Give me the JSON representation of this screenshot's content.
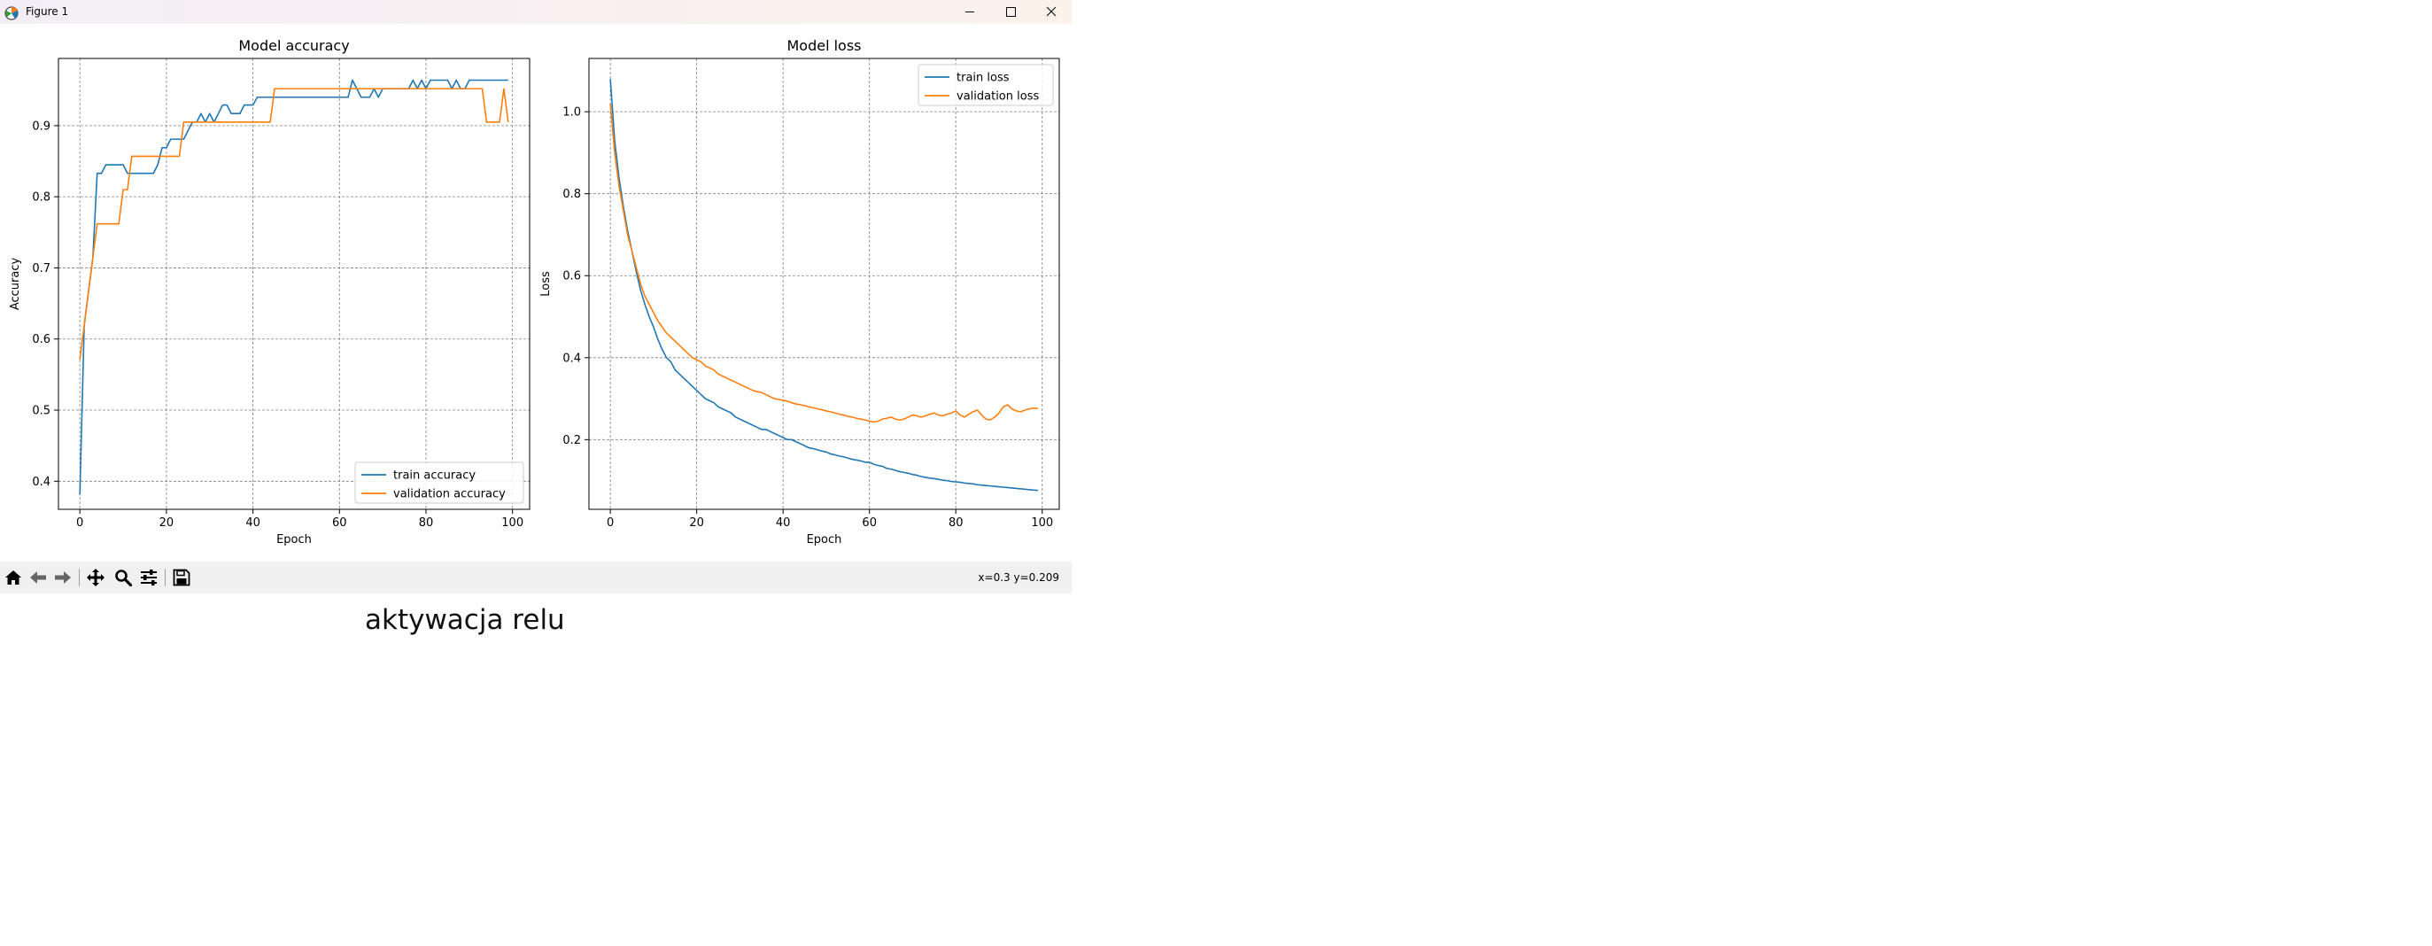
{
  "window": {
    "title": "Figure 1"
  },
  "toolbar": {
    "coordinates": "x=0.3 y=0.209",
    "tools": [
      "home-icon",
      "back-arrow-icon",
      "forward-arrow-icon",
      "pan-icon",
      "zoom-icon",
      "configure-icon",
      "save-icon"
    ]
  },
  "caption": "aktywacja relu",
  "colors": {
    "train": "#1f77b4",
    "validation": "#ff7f0e",
    "grid": "#808080"
  },
  "chart_data": [
    {
      "type": "line",
      "title": "Model accuracy",
      "xlabel": "Epoch",
      "ylabel": "Accuracy",
      "xlim": [
        -4.95,
        103.95
      ],
      "ylim": [
        0.3605,
        0.9945
      ],
      "xticks": [
        0,
        20,
        40,
        60,
        80,
        100
      ],
      "yticks": [
        0.4,
        0.5,
        0.6,
        0.7,
        0.8,
        0.9
      ],
      "grid": true,
      "grid_style": "dashed",
      "legend_position": "lower-right",
      "series": [
        {
          "name": "train accuracy",
          "color": "#1f77b4",
          "x": [
            0,
            1,
            2,
            3,
            4,
            5,
            6,
            7,
            8,
            9,
            10,
            11,
            12,
            13,
            14,
            15,
            16,
            17,
            18,
            19,
            20,
            21,
            22,
            23,
            24,
            25,
            26,
            27,
            28,
            29,
            30,
            31,
            32,
            33,
            34,
            35,
            36,
            37,
            38,
            39,
            40,
            41,
            42,
            43,
            44,
            45,
            46,
            47,
            48,
            49,
            50,
            51,
            52,
            53,
            54,
            55,
            56,
            57,
            58,
            59,
            60,
            61,
            62,
            63,
            64,
            65,
            66,
            67,
            68,
            69,
            70,
            71,
            72,
            73,
            74,
            75,
            76,
            77,
            78,
            79,
            80,
            81,
            82,
            83,
            84,
            85,
            86,
            87,
            88,
            89,
            90,
            91,
            92,
            93,
            94,
            95,
            96,
            97,
            98,
            99
          ],
          "values": [
            0.381,
            0.619,
            0.667,
            0.714,
            0.833,
            0.833,
            0.845,
            0.845,
            0.845,
            0.845,
            0.845,
            0.833,
            0.833,
            0.833,
            0.833,
            0.833,
            0.833,
            0.833,
            0.845,
            0.869,
            0.869,
            0.881,
            0.881,
            0.881,
            0.881,
            0.893,
            0.905,
            0.905,
            0.917,
            0.905,
            0.917,
            0.905,
            0.917,
            0.929,
            0.929,
            0.917,
            0.917,
            0.917,
            0.929,
            0.929,
            0.929,
            0.94,
            0.94,
            0.94,
            0.94,
            0.94,
            0.94,
            0.94,
            0.94,
            0.94,
            0.94,
            0.94,
            0.94,
            0.94,
            0.94,
            0.94,
            0.94,
            0.94,
            0.94,
            0.94,
            0.94,
            0.94,
            0.94,
            0.964,
            0.952,
            0.94,
            0.94,
            0.94,
            0.952,
            0.94,
            0.952,
            0.952,
            0.952,
            0.952,
            0.952,
            0.952,
            0.952,
            0.964,
            0.952,
            0.964,
            0.952,
            0.964,
            0.964,
            0.964,
            0.964,
            0.964,
            0.952,
            0.964,
            0.952,
            0.952,
            0.964,
            0.964,
            0.964,
            0.964,
            0.964,
            0.964,
            0.964,
            0.964,
            0.964,
            0.964
          ]
        },
        {
          "name": "validation accuracy",
          "color": "#ff7f0e",
          "x": [
            0,
            1,
            2,
            3,
            4,
            5,
            6,
            7,
            8,
            9,
            10,
            11,
            12,
            13,
            14,
            15,
            16,
            17,
            18,
            19,
            20,
            21,
            22,
            23,
            24,
            25,
            26,
            27,
            28,
            29,
            30,
            31,
            32,
            33,
            34,
            35,
            36,
            37,
            38,
            39,
            40,
            41,
            42,
            43,
            44,
            45,
            46,
            47,
            48,
            49,
            50,
            51,
            52,
            53,
            54,
            55,
            56,
            57,
            58,
            59,
            60,
            61,
            62,
            63,
            64,
            65,
            66,
            67,
            68,
            69,
            70,
            71,
            72,
            73,
            74,
            75,
            76,
            77,
            78,
            79,
            80,
            81,
            82,
            83,
            84,
            85,
            86,
            87,
            88,
            89,
            90,
            91,
            92,
            93,
            94,
            95,
            96,
            97,
            98,
            99
          ],
          "values": [
            0.571,
            0.619,
            0.667,
            0.714,
            0.762,
            0.762,
            0.762,
            0.762,
            0.762,
            0.762,
            0.81,
            0.81,
            0.857,
            0.857,
            0.857,
            0.857,
            0.857,
            0.857,
            0.857,
            0.857,
            0.857,
            0.857,
            0.857,
            0.857,
            0.905,
            0.905,
            0.905,
            0.905,
            0.905,
            0.905,
            0.905,
            0.905,
            0.905,
            0.905,
            0.905,
            0.905,
            0.905,
            0.905,
            0.905,
            0.905,
            0.905,
            0.905,
            0.905,
            0.905,
            0.905,
            0.952,
            0.952,
            0.952,
            0.952,
            0.952,
            0.952,
            0.952,
            0.952,
            0.952,
            0.952,
            0.952,
            0.952,
            0.952,
            0.952,
            0.952,
            0.952,
            0.952,
            0.952,
            0.952,
            0.952,
            0.952,
            0.952,
            0.952,
            0.952,
            0.952,
            0.952,
            0.952,
            0.952,
            0.952,
            0.952,
            0.952,
            0.952,
            0.952,
            0.952,
            0.952,
            0.952,
            0.952,
            0.952,
            0.952,
            0.952,
            0.952,
            0.952,
            0.952,
            0.952,
            0.952,
            0.952,
            0.952,
            0.952,
            0.952,
            0.905,
            0.905,
            0.905,
            0.905,
            0.952,
            0.905
          ]
        }
      ]
    },
    {
      "type": "line",
      "title": "Model loss",
      "xlabel": "Epoch",
      "ylabel": "Loss",
      "xlim": [
        -4.95,
        103.95
      ],
      "ylim": [
        0.03,
        1.13
      ],
      "xticks": [
        0,
        20,
        40,
        60,
        80,
        100
      ],
      "yticks": [
        0.2,
        0.4,
        0.6,
        0.8,
        1.0
      ],
      "grid": true,
      "grid_style": "dashed",
      "legend_position": "upper-right",
      "series": [
        {
          "name": "train loss",
          "color": "#1f77b4",
          "x": [
            0,
            1,
            2,
            3,
            4,
            5,
            6,
            7,
            8,
            9,
            10,
            11,
            12,
            13,
            14,
            15,
            16,
            17,
            18,
            19,
            20,
            21,
            22,
            23,
            24,
            25,
            26,
            27,
            28,
            29,
            30,
            31,
            32,
            33,
            34,
            35,
            36,
            37,
            38,
            39,
            40,
            41,
            42,
            43,
            44,
            45,
            46,
            47,
            48,
            49,
            50,
            51,
            52,
            53,
            54,
            55,
            56,
            57,
            58,
            59,
            60,
            61,
            62,
            63,
            64,
            65,
            66,
            67,
            68,
            69,
            70,
            71,
            72,
            73,
            74,
            75,
            76,
            77,
            78,
            79,
            80,
            81,
            82,
            83,
            84,
            85,
            86,
            87,
            88,
            89,
            90,
            91,
            92,
            93,
            94,
            95,
            96,
            97,
            98,
            99
          ],
          "values": [
            1.08,
            0.93,
            0.84,
            0.77,
            0.71,
            0.66,
            0.61,
            0.565,
            0.53,
            0.5,
            0.475,
            0.445,
            0.42,
            0.4,
            0.39,
            0.37,
            0.36,
            0.35,
            0.34,
            0.33,
            0.32,
            0.31,
            0.3,
            0.295,
            0.29,
            0.28,
            0.275,
            0.27,
            0.265,
            0.255,
            0.25,
            0.245,
            0.24,
            0.235,
            0.23,
            0.225,
            0.225,
            0.22,
            0.215,
            0.21,
            0.205,
            0.2,
            0.2,
            0.195,
            0.19,
            0.185,
            0.18,
            0.178,
            0.175,
            0.172,
            0.17,
            0.165,
            0.163,
            0.16,
            0.158,
            0.155,
            0.152,
            0.15,
            0.148,
            0.145,
            0.145,
            0.14,
            0.137,
            0.135,
            0.13,
            0.128,
            0.125,
            0.122,
            0.12,
            0.118,
            0.115,
            0.113,
            0.11,
            0.108,
            0.106,
            0.105,
            0.103,
            0.101,
            0.1,
            0.098,
            0.097,
            0.096,
            0.094,
            0.093,
            0.092,
            0.09,
            0.089,
            0.088,
            0.087,
            0.086,
            0.085,
            0.084,
            0.083,
            0.082,
            0.081,
            0.08,
            0.079,
            0.078,
            0.077,
            0.076
          ]
        },
        {
          "name": "validation loss",
          "color": "#ff7f0e",
          "x": [
            0,
            1,
            2,
            3,
            4,
            5,
            6,
            7,
            8,
            9,
            10,
            11,
            12,
            13,
            14,
            15,
            16,
            17,
            18,
            19,
            20,
            21,
            22,
            23,
            24,
            25,
            26,
            27,
            28,
            29,
            30,
            31,
            32,
            33,
            34,
            35,
            36,
            37,
            38,
            39,
            40,
            41,
            42,
            43,
            44,
            45,
            46,
            47,
            48,
            49,
            50,
            51,
            52,
            53,
            54,
            55,
            56,
            57,
            58,
            59,
            60,
            61,
            62,
            63,
            64,
            65,
            66,
            67,
            68,
            69,
            70,
            71,
            72,
            73,
            74,
            75,
            76,
            77,
            78,
            79,
            80,
            81,
            82,
            83,
            84,
            85,
            86,
            87,
            88,
            89,
            90,
            91,
            92,
            93,
            94,
            95,
            96,
            97,
            98,
            99
          ],
          "values": [
            1.02,
            0.9,
            0.82,
            0.76,
            0.7,
            0.66,
            0.62,
            0.58,
            0.55,
            0.53,
            0.51,
            0.49,
            0.475,
            0.46,
            0.45,
            0.44,
            0.43,
            0.42,
            0.41,
            0.4,
            0.395,
            0.39,
            0.38,
            0.375,
            0.37,
            0.36,
            0.355,
            0.35,
            0.345,
            0.34,
            0.335,
            0.33,
            0.325,
            0.32,
            0.317,
            0.315,
            0.31,
            0.305,
            0.3,
            0.298,
            0.296,
            0.294,
            0.29,
            0.287,
            0.285,
            0.283,
            0.28,
            0.278,
            0.275,
            0.273,
            0.27,
            0.268,
            0.265,
            0.262,
            0.26,
            0.257,
            0.255,
            0.252,
            0.25,
            0.248,
            0.245,
            0.243,
            0.245,
            0.25,
            0.252,
            0.255,
            0.25,
            0.248,
            0.25,
            0.255,
            0.26,
            0.258,
            0.255,
            0.258,
            0.262,
            0.265,
            0.26,
            0.258,
            0.262,
            0.265,
            0.27,
            0.26,
            0.255,
            0.262,
            0.268,
            0.272,
            0.26,
            0.25,
            0.248,
            0.255,
            0.265,
            0.28,
            0.285,
            0.275,
            0.27,
            0.268,
            0.272,
            0.275,
            0.277,
            0.276
          ]
        }
      ]
    }
  ]
}
